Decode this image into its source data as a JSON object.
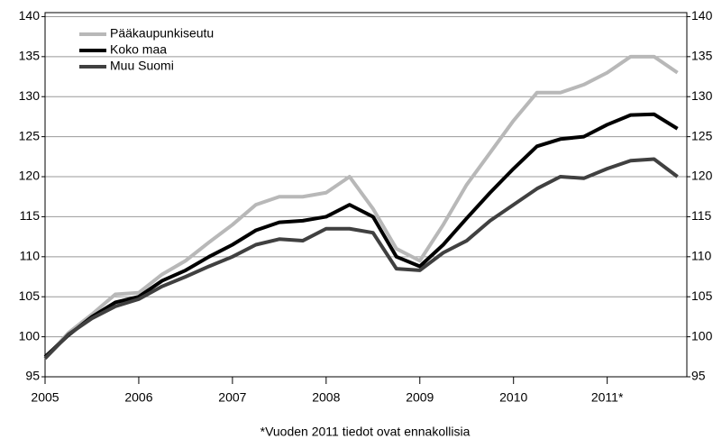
{
  "chart_data": {
    "type": "line",
    "x": [
      2005,
      2005.25,
      2005.5,
      2005.75,
      2006,
      2006.25,
      2006.5,
      2006.75,
      2007,
      2007.25,
      2007.5,
      2007.75,
      2008,
      2008.25,
      2008.5,
      2008.75,
      2009,
      2009.25,
      2009.5,
      2009.75,
      2010,
      2010.25,
      2010.5,
      2010.75,
      2011,
      2011.25,
      2011.5,
      2011.75
    ],
    "series": [
      {
        "name": "Pääkaupunkiseutu",
        "color": "#b8b8b8",
        "values": [
          97.3,
          100.5,
          102.8,
          105.3,
          105.5,
          107.8,
          109.5,
          111.8,
          114.0,
          116.5,
          117.5,
          117.5,
          118.0,
          120.0,
          116.0,
          111.0,
          109.5,
          114.0,
          119.0,
          123.0,
          127.0,
          130.5,
          130.5,
          131.5,
          133.0,
          135.0,
          135.0,
          133.0
        ]
      },
      {
        "name": "Koko maa",
        "color": "#000000",
        "values": [
          97.5,
          100.2,
          102.5,
          104.3,
          105.0,
          107.0,
          108.3,
          110.0,
          111.5,
          113.3,
          114.3,
          114.5,
          115.0,
          116.5,
          115.0,
          110.0,
          108.8,
          111.5,
          114.8,
          118.0,
          121.0,
          123.8,
          124.7,
          125.0,
          126.5,
          127.7,
          127.8,
          126.0
        ]
      },
      {
        "name": "Muu Suomi",
        "color": "#404040",
        "values": [
          97.3,
          100.3,
          102.3,
          103.8,
          104.7,
          106.3,
          107.5,
          108.8,
          110.0,
          111.5,
          112.2,
          112.0,
          113.5,
          113.5,
          113.0,
          108.5,
          108.3,
          110.5,
          112.0,
          114.5,
          116.5,
          118.5,
          120.0,
          119.8,
          121.0,
          122.0,
          122.2,
          120.0
        ]
      }
    ],
    "xlim": [
      2005,
      2011.85
    ],
    "xticks": [
      2005,
      2006,
      2007,
      2008,
      2009,
      2010,
      {
        "value": 2011,
        "label": "2011*"
      }
    ],
    "ylim": [
      95,
      140.5
    ],
    "yticks": [
      95,
      100,
      105,
      110,
      115,
      120,
      125,
      130,
      135,
      140
    ],
    "grid": true,
    "legend": "top-left",
    "annotation": "*Vuoden 2011 tiedot ovat ennakollisia"
  }
}
